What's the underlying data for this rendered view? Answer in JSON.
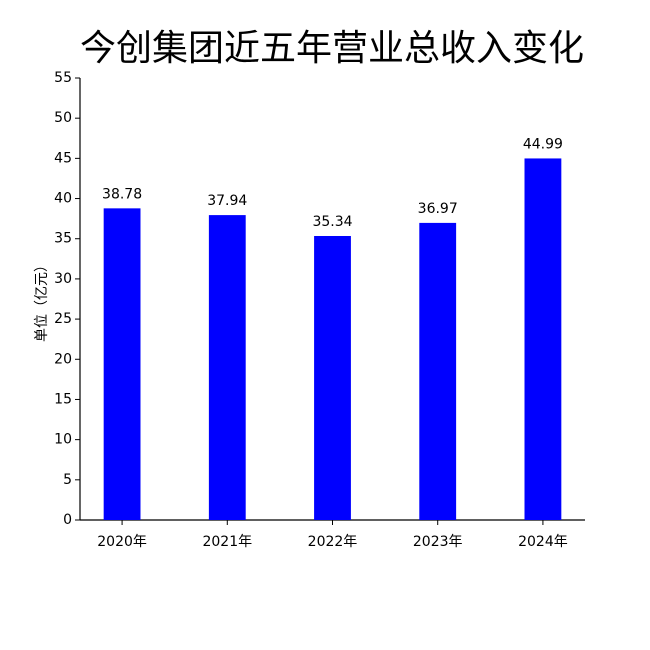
{
  "chart_data": {
    "type": "bar",
    "title": "今创集团近五年营业总收入变化",
    "y_label": "单位（亿元）",
    "categories": [
      "2020年",
      "2021年",
      "2022年",
      "2023年",
      "2024年"
    ],
    "values": [
      38.78,
      37.94,
      35.34,
      36.97,
      44.99
    ],
    "color": "#0000ff",
    "ylim": [
      0,
      55
    ],
    "yticks": [
      0,
      5,
      10,
      15,
      20,
      25,
      30,
      35,
      40,
      45,
      50,
      55
    ],
    "grid": false
  }
}
